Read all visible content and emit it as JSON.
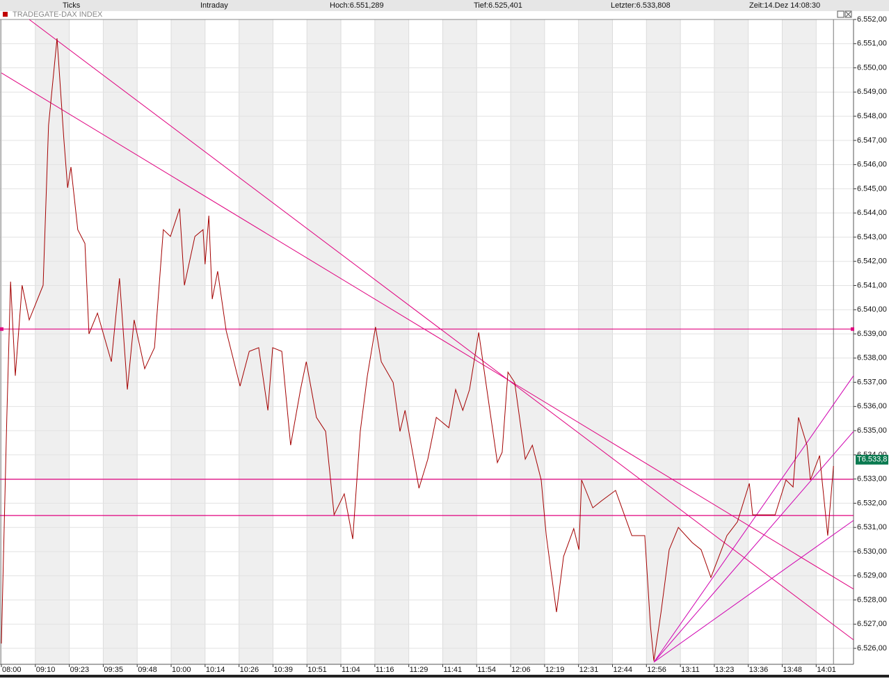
{
  "header": {
    "mode": "Ticks",
    "period": "Intraday",
    "high": "Hoch:6.551,289",
    "low": "Tief:6.525,401",
    "last": "Letzter:6.533,808",
    "time": "Zeit:14.Dez 14:08:30"
  },
  "chart_data": {
    "type": "line",
    "title": "TRADEGATE-DAX INDEX",
    "color": "#a30000",
    "x": [
      0,
      0.16,
      0.27,
      0.41,
      0.61,
      0.82,
      1.23,
      1.39,
      1.64,
      1.84,
      1.95,
      2.05,
      2.25,
      2.46,
      2.58,
      2.83,
      3.24,
      3.48,
      3.71,
      3.91,
      4.22,
      4.51,
      4.77,
      4.98,
      5.25,
      5.39,
      5.7,
      5.94,
      6.0,
      6.11,
      6.21,
      6.37,
      6.62,
      7.03,
      7.3,
      7.58,
      7.85,
      7.99,
      8.26,
      8.52,
      8.81,
      8.98,
      9.28,
      9.55,
      9.8,
      10.1,
      10.35,
      10.57,
      10.78,
      11.02,
      11.19,
      11.54,
      11.74,
      11.89,
      12.3,
      12.56,
      12.81,
      13.18,
      13.38,
      13.59,
      13.79,
      14.06,
      14.3,
      14.61,
      14.75,
      14.92,
      15.12,
      15.43,
      15.64,
      15.9,
      16.05,
      16.35,
      16.56,
      16.86,
      17.01,
      17.09,
      17.42,
      17.68,
      18.09,
      18.57,
      18.95,
      19.12,
      19.22,
      19.43,
      19.67,
      19.94,
      20.35,
      20.61,
      20.9,
      21.37,
      21.68,
      22.03,
      22.13,
      22.79,
      23.11,
      23.32,
      23.48,
      23.73,
      23.83,
      24.1,
      24.34,
      24.51
    ],
    "values": [
      6526.2,
      6535.55,
      6541.16,
      6537.27,
      6541.01,
      6539.58,
      6541.01,
      6547.63,
      6551.22,
      6547.05,
      6545.04,
      6545.9,
      6543.31,
      6542.74,
      6539.0,
      6539.86,
      6537.85,
      6541.3,
      6536.7,
      6539.58,
      6537.56,
      6538.43,
      6543.31,
      6543.03,
      6544.18,
      6541.01,
      6543.03,
      6543.31,
      6541.88,
      6543.89,
      6540.44,
      6541.59,
      6539.14,
      6536.84,
      6538.28,
      6538.43,
      6535.84,
      6538.43,
      6538.28,
      6534.4,
      6536.7,
      6537.85,
      6535.55,
      6534.97,
      6531.52,
      6532.39,
      6530.52,
      6534.97,
      6537.27,
      6539.29,
      6537.85,
      6536.99,
      6534.97,
      6535.84,
      6532.62,
      6533.82,
      6535.55,
      6535.12,
      6536.7,
      6535.84,
      6536.7,
      6539.06,
      6536.7,
      6533.68,
      6534.11,
      6537.42,
      6536.99,
      6533.82,
      6534.4,
      6532.96,
      6530.66,
      6527.5,
      6529.8,
      6530.95,
      6530.08,
      6532.96,
      6531.81,
      6532.1,
      6532.53,
      6530.66,
      6530.66,
      6526.92,
      6525.48,
      6527.5,
      6530.08,
      6531.0,
      6530.37,
      6530.08,
      6528.93,
      6530.66,
      6531.23,
      6532.82,
      6531.52,
      6531.52,
      6532.96,
      6532.67,
      6535.55,
      6534.4,
      6532.96,
      6533.97,
      6530.66,
      6533.54
    ],
    "xlim": [
      0,
      25.1
    ],
    "ylim": [
      6525.34,
      6552
    ],
    "xticks": [
      {
        "value": 0,
        "label": "08:00"
      },
      {
        "value": 1,
        "label": "09:10"
      },
      {
        "value": 2,
        "label": "09:23"
      },
      {
        "value": 3,
        "label": "09:35"
      },
      {
        "value": 4,
        "label": "09:48"
      },
      {
        "value": 5,
        "label": "10:00"
      },
      {
        "value": 6,
        "label": "10:14"
      },
      {
        "value": 7,
        "label": "10:26"
      },
      {
        "value": 8,
        "label": "10:39"
      },
      {
        "value": 9,
        "label": "10:51"
      },
      {
        "value": 10,
        "label": "11:04"
      },
      {
        "value": 11,
        "label": "11:16"
      },
      {
        "value": 12,
        "label": "11:29"
      },
      {
        "value": 13,
        "label": "11:41"
      },
      {
        "value": 14,
        "label": "11:54"
      },
      {
        "value": 15,
        "label": "12:06"
      },
      {
        "value": 16,
        "label": "12:19"
      },
      {
        "value": 17,
        "label": "12:31"
      },
      {
        "value": 18,
        "label": "12:44"
      },
      {
        "value": 19,
        "label": "12:56"
      },
      {
        "value": 20,
        "label": "13:11"
      },
      {
        "value": 21,
        "label": "13:23"
      },
      {
        "value": 22,
        "label": "13:36"
      },
      {
        "value": 23,
        "label": "13:48"
      },
      {
        "value": 24,
        "label": "14:01"
      }
    ],
    "yticks": [
      {
        "value": 6526,
        "label": "6.526,00"
      },
      {
        "value": 6527,
        "label": "6.527,00"
      },
      {
        "value": 6528,
        "label": "6.528,00"
      },
      {
        "value": 6529,
        "label": "6.529,00"
      },
      {
        "value": 6530,
        "label": "6.530,00"
      },
      {
        "value": 6531,
        "label": "6.531,00"
      },
      {
        "value": 6532,
        "label": "6.532,00"
      },
      {
        "value": 6533,
        "label": "6.533,00"
      },
      {
        "value": 6534,
        "label": "6.534,00"
      },
      {
        "value": 6535,
        "label": "6.535,00"
      },
      {
        "value": 6536,
        "label": "6.536,00"
      },
      {
        "value": 6537,
        "label": "6.537,00"
      },
      {
        "value": 6538,
        "label": "6.538,00"
      },
      {
        "value": 6539,
        "label": "6.539,00"
      },
      {
        "value": 6540,
        "label": "6.540,00"
      },
      {
        "value": 6541,
        "label": "6.541,00"
      },
      {
        "value": 6542,
        "label": "6.542,00"
      },
      {
        "value": 6543,
        "label": "6.543,00"
      },
      {
        "value": 6544,
        "label": "6.544,00"
      },
      {
        "value": 6545,
        "label": "6.545,00"
      },
      {
        "value": 6546,
        "label": "6.546,00"
      },
      {
        "value": 6547,
        "label": "6.547,00"
      },
      {
        "value": 6548,
        "label": "6.548,00"
      },
      {
        "value": 6549,
        "label": "6.549,00"
      },
      {
        "value": 6550,
        "label": "6.550,00"
      },
      {
        "value": 6551,
        "label": "6.551,00"
      },
      {
        "value": 6552,
        "label": "6.552,00"
      }
    ],
    "grid": true,
    "hlines": [
      6539.2,
      6532.99,
      6531.49
    ],
    "hline_color": "#e0007f",
    "trend_lines": [
      [
        0.82,
        6552.0,
        25.1,
        6526.35
      ],
      [
        0,
        6549.79,
        25.1,
        6528.45
      ],
      [
        19.22,
        6525.43,
        25.1,
        6537.27
      ],
      [
        19.22,
        6525.43,
        25.1,
        6534.97
      ],
      [
        19.22,
        6525.43,
        25.1,
        6531.29
      ]
    ],
    "trend_color": "#d000b0",
    "cursor_x": 24.51,
    "last_price": {
      "value": 6533.8,
      "label": "T6.533,8"
    }
  }
}
